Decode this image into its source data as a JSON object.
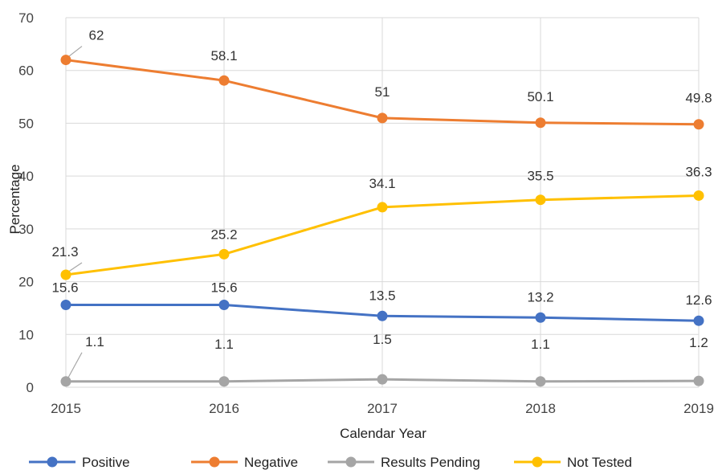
{
  "chart_data": {
    "type": "line",
    "title": "",
    "xlabel": "Calendar Year",
    "ylabel": "Percentage",
    "x": [
      "2015",
      "2016",
      "2017",
      "2018",
      "2019"
    ],
    "ylim": [
      0,
      70
    ],
    "yticks": [
      0,
      10,
      20,
      30,
      40,
      50,
      60,
      70
    ],
    "grid": true,
    "legend_position": "bottom",
    "series": [
      {
        "name": "Positive",
        "color": "#4472C4",
        "values": [
          15.6,
          15.6,
          13.5,
          13.2,
          12.6
        ],
        "labels": [
          "15.6",
          "15.6",
          "13.5",
          "13.2",
          "12.6"
        ]
      },
      {
        "name": "Negative",
        "color": "#ED7D31",
        "values": [
          62,
          58.1,
          51,
          50.1,
          49.8
        ],
        "labels": [
          "62",
          "58.1",
          "51",
          "50.1",
          "49.8"
        ]
      },
      {
        "name": "Results Pending",
        "color": "#A5A5A5",
        "values": [
          1.1,
          1.1,
          1.5,
          1.1,
          1.2
        ],
        "labels": [
          "1.1",
          "1.1",
          "1.5",
          "1.1",
          "1.2"
        ]
      },
      {
        "name": "Not Tested",
        "color": "#FFC000",
        "values": [
          21.3,
          25.2,
          34.1,
          35.5,
          36.3
        ],
        "labels": [
          "21.3",
          "25.2",
          "34.1",
          "35.5",
          "36.3"
        ]
      }
    ]
  }
}
